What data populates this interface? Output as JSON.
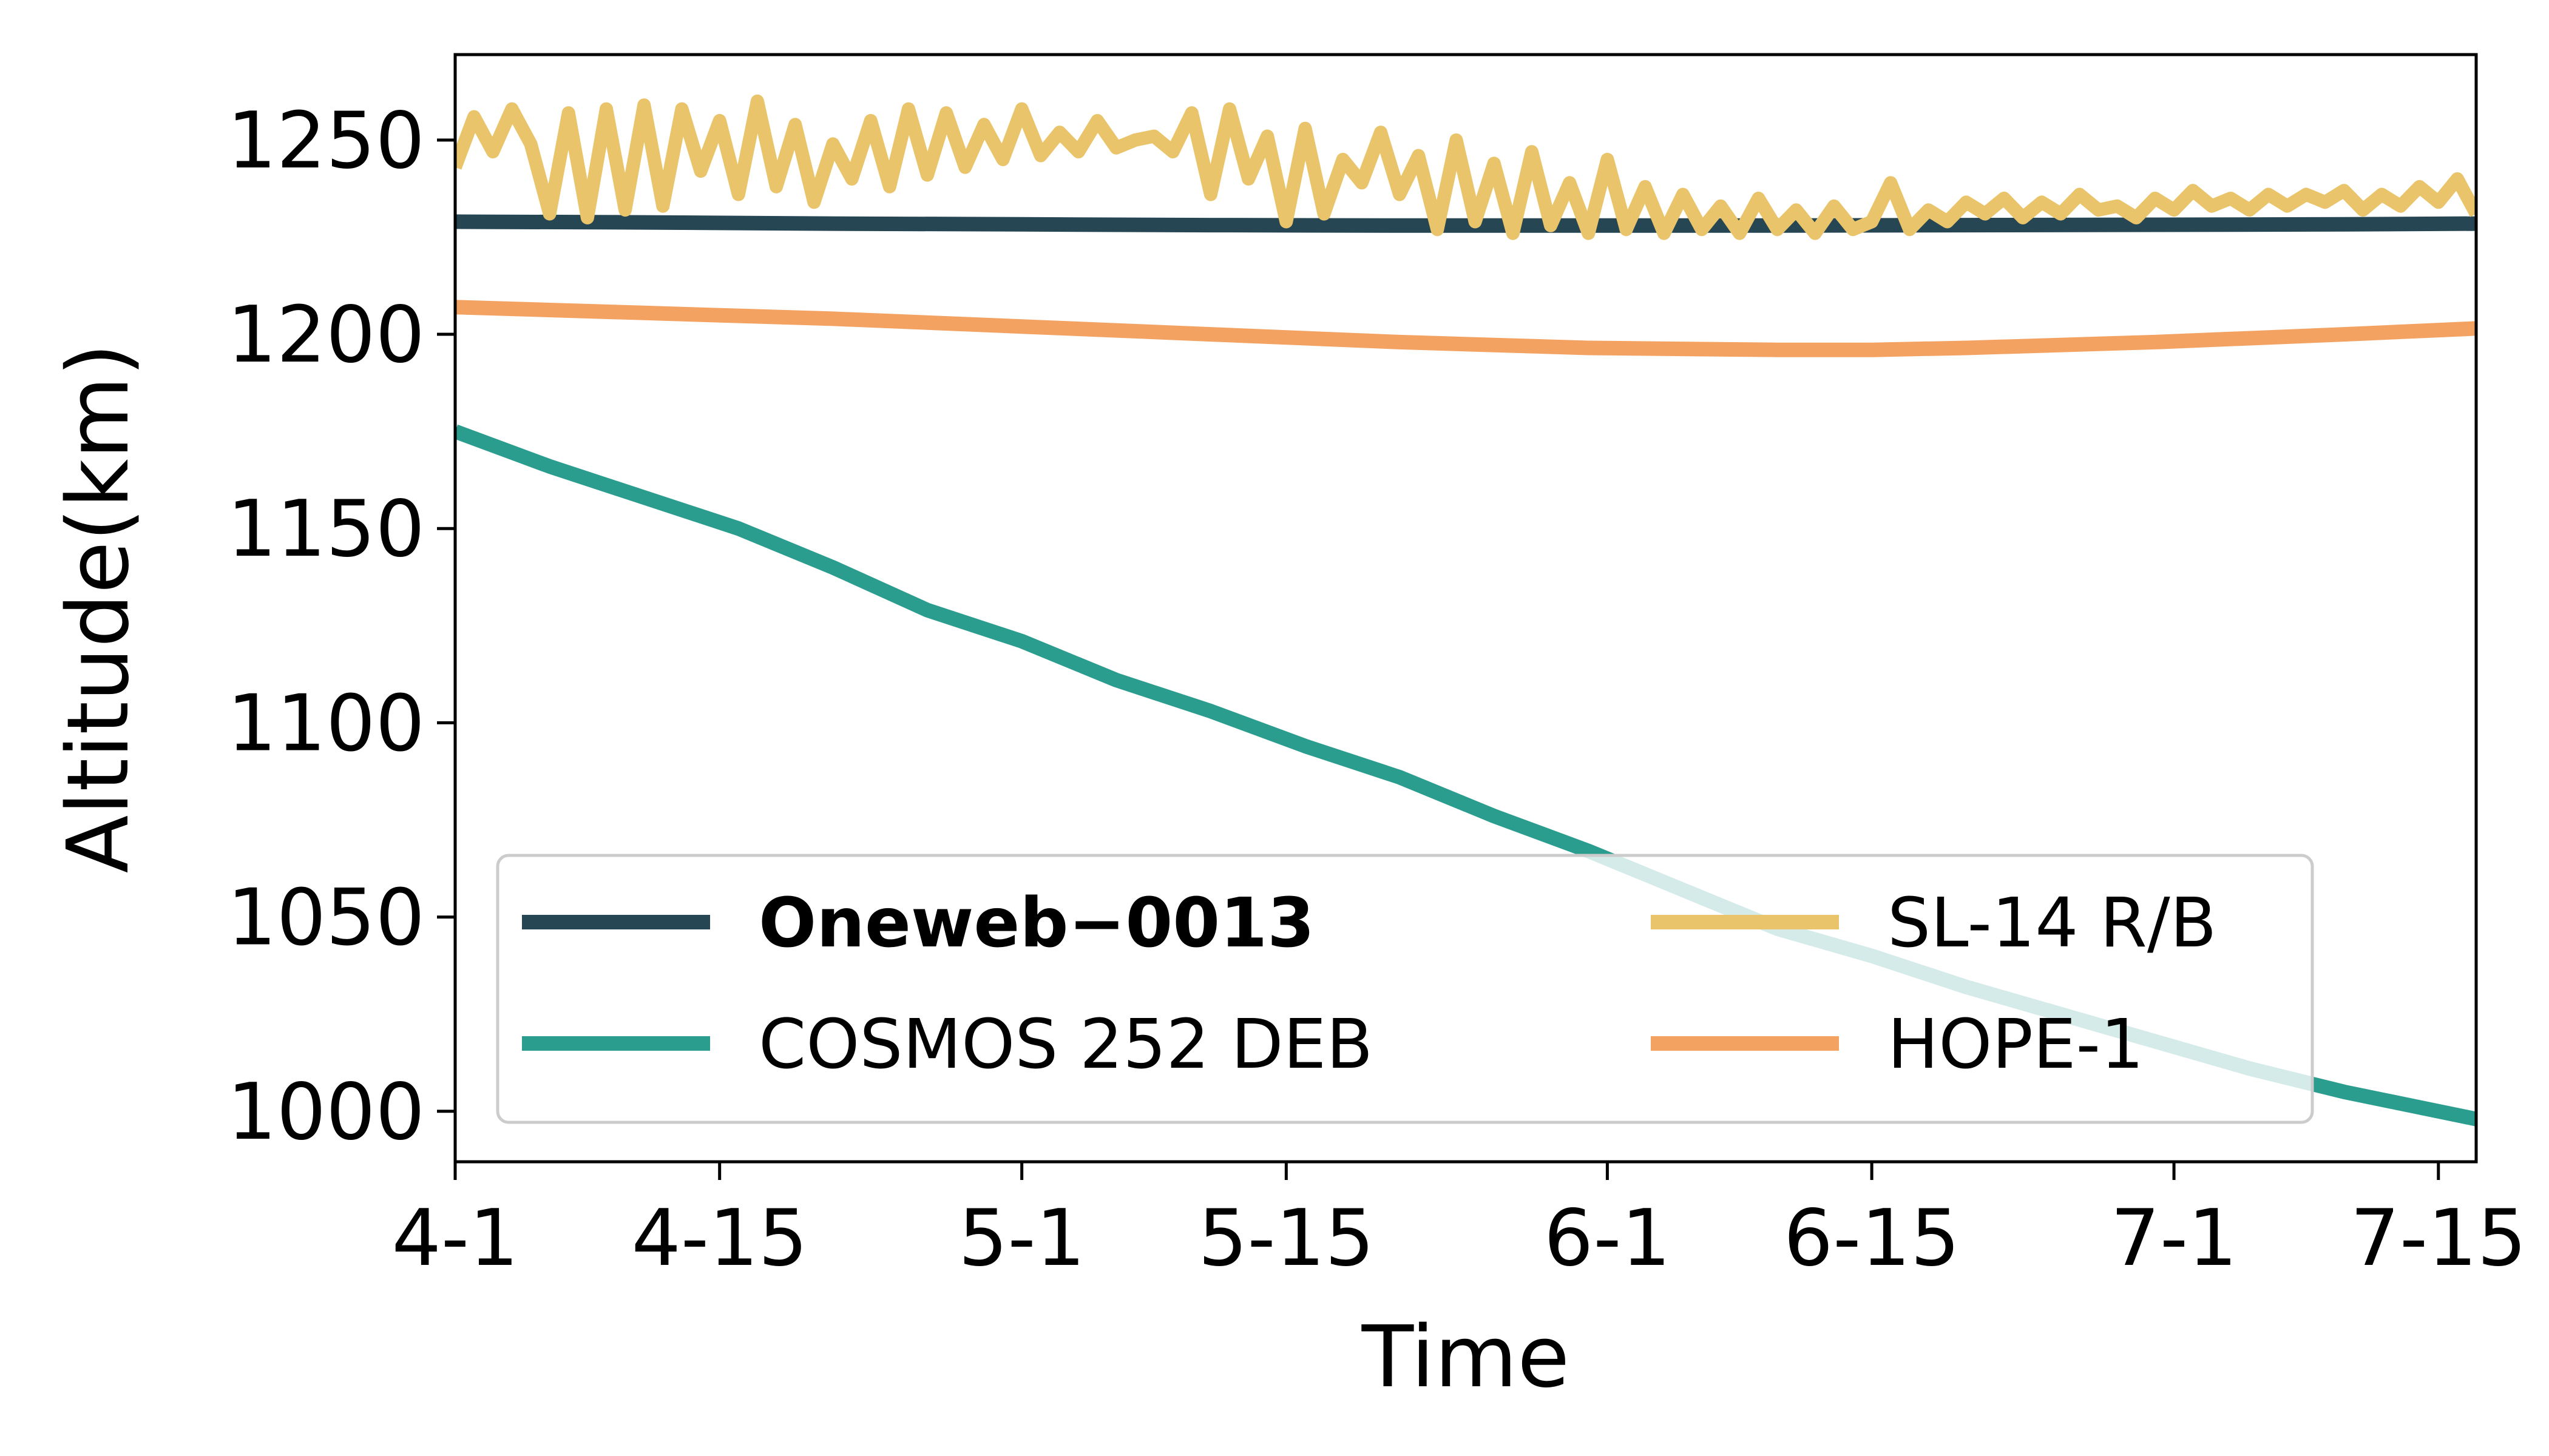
{
  "chart_data": {
    "type": "line",
    "title": "",
    "xlabel": "Time",
    "ylabel": "Altitude(km)",
    "x_ticks": [
      "4-1",
      "4-15",
      "5-1",
      "5-15",
      "6-1",
      "6-15",
      "7-1",
      "7-15"
    ],
    "x_tick_days": [
      0,
      14,
      30,
      44,
      61,
      75,
      91,
      105
    ],
    "xlim": [
      0,
      107
    ],
    "y_ticks": [
      1000,
      1050,
      1100,
      1150,
      1200,
      1250
    ],
    "ylim": [
      987,
      1272
    ],
    "grid": false,
    "legend": {
      "placement": "lower-left",
      "columns": 2
    },
    "series": [
      {
        "name": "Oneweb−0013",
        "color": "#264653",
        "bold": true,
        "x": [
          0,
          10,
          20,
          30,
          40,
          50,
          60,
          70,
          80,
          90,
          100,
          107
        ],
        "y": [
          1229,
          1228.8,
          1228.5,
          1228.3,
          1228.1,
          1228,
          1228,
          1228,
          1228.1,
          1228.2,
          1228.3,
          1228.5
        ]
      },
      {
        "name": "COSMOS 252 DEB",
        "color": "#2a9d8f",
        "bold": false,
        "x": [
          0,
          5,
          10,
          15,
          20,
          25,
          30,
          35,
          40,
          45,
          50,
          55,
          60,
          65,
          70,
          75,
          80,
          85,
          90,
          95,
          100,
          107
        ],
        "y": [
          1175,
          1166,
          1158,
          1150,
          1140,
          1129,
          1121,
          1111,
          1103,
          1094,
          1086,
          1076,
          1067,
          1057,
          1047,
          1040,
          1032,
          1025,
          1018,
          1011,
          1005,
          998
        ]
      },
      {
        "name": "SL-14 R/B",
        "color": "#e9c46a",
        "bold": false,
        "x": [
          0,
          1,
          2,
          3,
          4,
          5,
          6,
          7,
          8,
          9,
          10,
          11,
          12,
          13,
          14,
          15,
          16,
          17,
          18,
          19,
          20,
          21,
          22,
          23,
          24,
          25,
          26,
          27,
          28,
          29,
          30,
          31,
          32,
          33,
          34,
          35,
          36,
          37,
          38,
          39,
          40,
          41,
          42,
          43,
          44,
          45,
          46,
          47,
          48,
          49,
          50,
          51,
          52,
          53,
          54,
          55,
          56,
          57,
          58,
          59,
          60,
          61,
          62,
          63,
          64,
          65,
          66,
          67,
          68,
          69,
          70,
          71,
          72,
          73,
          74,
          75,
          76,
          77,
          78,
          79,
          80,
          81,
          82,
          83,
          84,
          85,
          86,
          87,
          88,
          89,
          90,
          91,
          92,
          93,
          94,
          95,
          96,
          97,
          98,
          99,
          100,
          101,
          102,
          103,
          104,
          105,
          106,
          107
        ],
        "y": [
          1243,
          1256,
          1247,
          1258,
          1249,
          1231,
          1257,
          1230,
          1258,
          1232,
          1259,
          1233,
          1258,
          1242,
          1255,
          1236,
          1260,
          1238,
          1254,
          1234,
          1249,
          1240,
          1255,
          1238,
          1258,
          1241,
          1257,
          1243,
          1254,
          1245,
          1258,
          1246,
          1252,
          1247,
          1255,
          1248,
          1250,
          1251,
          1247,
          1257,
          1236,
          1258,
          1240,
          1251,
          1229,
          1253,
          1231,
          1245,
          1239,
          1252,
          1236,
          1246,
          1227,
          1250,
          1229,
          1244,
          1226,
          1247,
          1228,
          1239,
          1226,
          1245,
          1227,
          1238,
          1226,
          1236,
          1227,
          1233,
          1226,
          1235,
          1227,
          1232,
          1226,
          1233,
          1227,
          1229,
          1239,
          1227,
          1232,
          1229,
          1234,
          1231,
          1235,
          1230,
          1234,
          1231,
          1236,
          1232,
          1233,
          1230,
          1235,
          1232,
          1237,
          1233,
          1235,
          1232,
          1236,
          1233,
          1236,
          1234,
          1237,
          1232,
          1236,
          1233,
          1238,
          1234,
          1240,
          1231
        ]
      },
      {
        "name": "HOPE-1",
        "color": "#f4a261",
        "bold": false,
        "x": [
          0,
          10,
          20,
          30,
          40,
          50,
          60,
          70,
          75,
          80,
          90,
          100,
          107
        ],
        "y": [
          1207,
          1205.5,
          1204,
          1202,
          1200,
          1198,
          1196.5,
          1196,
          1196,
          1196.5,
          1198,
          1200,
          1201.5
        ]
      }
    ]
  }
}
